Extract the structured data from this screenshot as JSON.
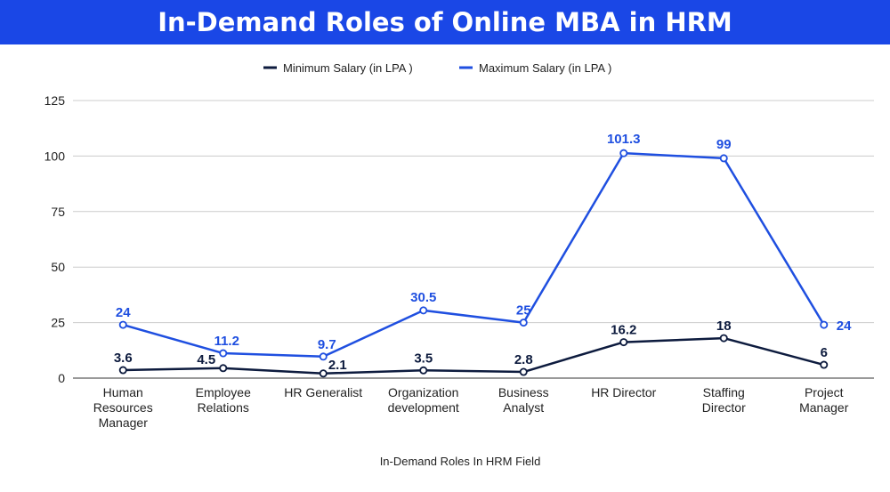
{
  "header": {
    "title": "In-Demand Roles of Online MBA in HRM"
  },
  "colors": {
    "banner": "#1a47e6",
    "min_series": "#0d1b3e",
    "max_series": "#1f4fe0",
    "grid": "#cccccc"
  },
  "chart_data": {
    "type": "line",
    "title": "In-Demand Roles of Online MBA in HRM",
    "xlabel": "In-Demand Roles In HRM Field",
    "ylabel": "",
    "ylim": [
      0,
      125
    ],
    "yticks": [
      0,
      25,
      50,
      75,
      100,
      125
    ],
    "grid": true,
    "legend_position": "top",
    "categories": [
      [
        "Human",
        "Resources",
        "Manager"
      ],
      [
        "Employee",
        "Relations"
      ],
      [
        "HR Generalist"
      ],
      [
        "Organization",
        "development"
      ],
      [
        "Business",
        "Analyst"
      ],
      [
        "HR Director"
      ],
      [
        "Staffing",
        "Director"
      ],
      [
        "Project",
        "Manager"
      ]
    ],
    "series": [
      {
        "name": "Minimum Salary (in LPA )",
        "color": "#0d1b3e",
        "values": [
          3.6,
          4.5,
          2.1,
          3.5,
          2.8,
          16.2,
          18,
          6
        ]
      },
      {
        "name": "Maximum Salary (in LPA )",
        "color": "#1f4fe0",
        "values": [
          24,
          11.2,
          9.7,
          30.5,
          25,
          101.3,
          99,
          24
        ]
      }
    ]
  }
}
